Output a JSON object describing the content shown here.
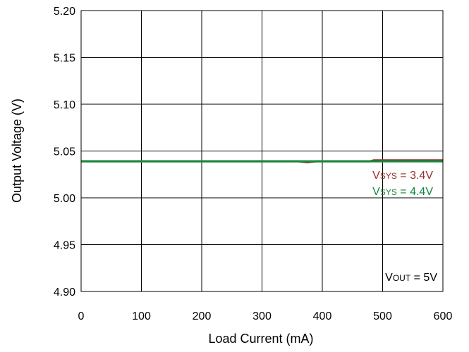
{
  "chart_data": {
    "type": "line",
    "xlabel": "Load Current (mA)",
    "ylabel": "Output Voltage (V)",
    "xlim": [
      0,
      600
    ],
    "ylim": [
      4.9,
      5.2
    ],
    "x_ticks": [
      "0",
      "100",
      "200",
      "300",
      "400",
      "500",
      "600"
    ],
    "y_ticks": [
      "4.90",
      "4.95",
      "5.00",
      "5.05",
      "5.10",
      "5.15",
      "5.20"
    ],
    "grid": true,
    "series": [
      {
        "name": "VSYS = 3.4V",
        "color": "#9b2d2d",
        "x": [
          0,
          100,
          200,
          300,
          360,
          375,
          390,
          480,
          485,
          500,
          600
        ],
        "y": [
          5.039,
          5.039,
          5.039,
          5.039,
          5.039,
          5.038,
          5.039,
          5.039,
          5.04,
          5.04,
          5.04
        ]
      },
      {
        "name": "VSYS = 4.4V",
        "color": "#138a3c",
        "x": [
          0,
          100,
          200,
          300,
          400,
          500,
          600
        ],
        "y": [
          5.039,
          5.039,
          5.039,
          5.039,
          5.039,
          5.039,
          5.039
        ]
      }
    ],
    "legend": [
      {
        "main": "V",
        "sub": "SYS",
        "rest": " = 3.4V",
        "color": "#9b2d2d"
      },
      {
        "main": "V",
        "sub": "SYS",
        "rest": " = 4.4V",
        "color": "#138a3c"
      }
    ],
    "annotation": {
      "main": "V",
      "sub": "OUT",
      "rest": " = 5V"
    }
  }
}
